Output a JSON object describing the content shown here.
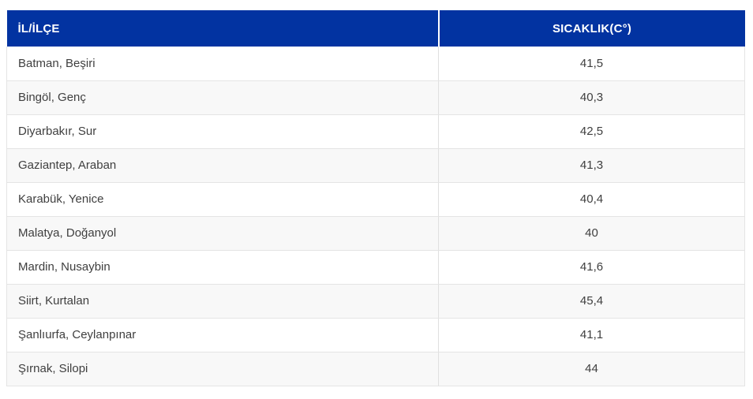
{
  "table": {
    "headers": [
      {
        "label": "İL/İLÇE"
      },
      {
        "label": "SICAKLIK(C°)"
      }
    ],
    "rows": [
      {
        "location": "Batman, Beşiri",
        "temperature": "41,5"
      },
      {
        "location": "Bingöl, Genç",
        "temperature": "40,3"
      },
      {
        "location": "Diyarbakır, Sur",
        "temperature": "42,5"
      },
      {
        "location": "Gaziantep, Araban",
        "temperature": "41,3"
      },
      {
        "location": "Karabük, Yenice",
        "temperature": "40,4"
      },
      {
        "location": "Malatya, Doğanyol",
        "temperature": "40"
      },
      {
        "location": "Mardin, Nusaybin",
        "temperature": "41,6"
      },
      {
        "location": "Siirt, Kurtalan",
        "temperature": "45,4"
      },
      {
        "location": "Şanlıurfa, Ceylanpınar",
        "temperature": "41,1"
      },
      {
        "location": "Şırnak, Silopi",
        "temperature": "44"
      }
    ]
  },
  "colors": {
    "header_bg": "#0233a1",
    "header_text": "#ffffff",
    "stripe_bg": "#f8f8f8",
    "row_border": "#e4e4e4",
    "body_text": "#3f3f3f"
  }
}
